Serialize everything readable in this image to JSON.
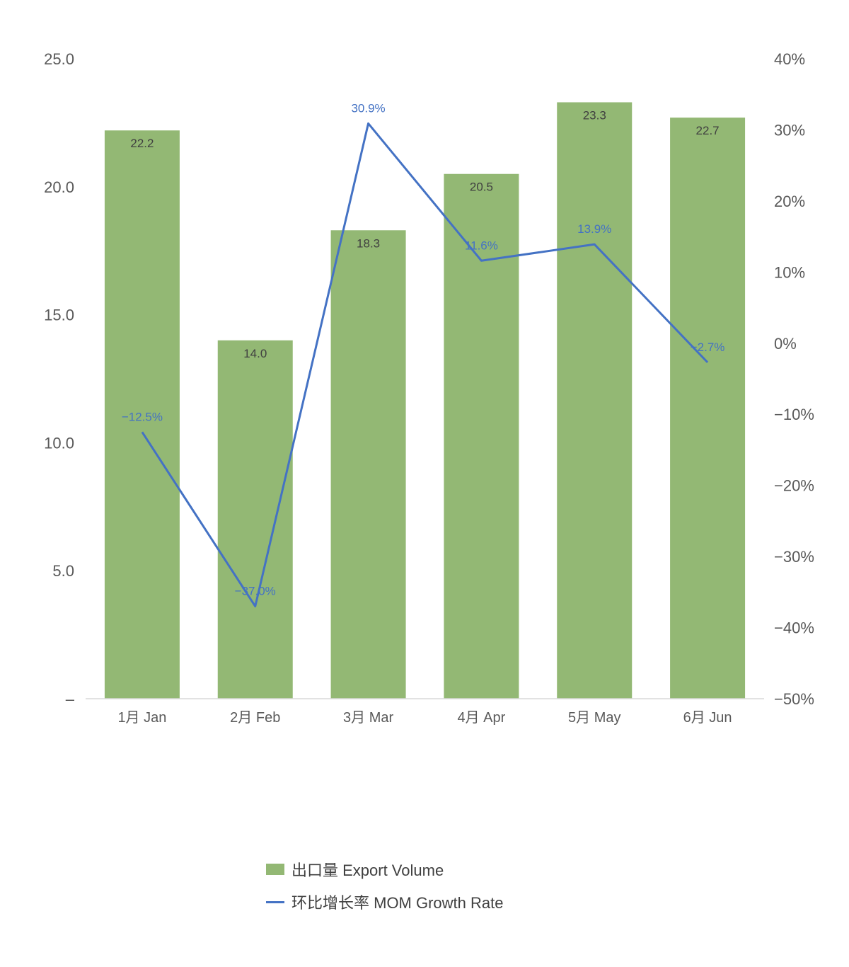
{
  "chart_data": {
    "type": "bar+line",
    "categories": [
      "1月 Jan",
      "2月 Feb",
      "3月 Mar",
      "4月 Apr",
      "5月 May",
      "6月 Jun"
    ],
    "series": [
      {
        "name": "出口量 Export Volume",
        "type": "bar",
        "axis": "left",
        "color": "#93b874",
        "values": [
          22.2,
          14.0,
          18.3,
          20.5,
          23.3,
          22.7
        ],
        "labels": [
          "22.2",
          "14.0",
          "18.3",
          "20.5",
          "23.3",
          "22.7"
        ]
      },
      {
        "name": "环比增长率 MOM Growth Rate",
        "type": "line",
        "axis": "right",
        "color": "#4472c4",
        "values": [
          -12.5,
          -37.0,
          30.9,
          11.6,
          13.9,
          -2.7
        ],
        "labels": [
          "−12.5%",
          "−37.0%",
          "30.9%",
          "11.6%",
          "13.9%",
          "−2.7%"
        ]
      }
    ],
    "y_left": {
      "ylim": [
        0,
        25
      ],
      "ticks": [
        0,
        5,
        10,
        15,
        20,
        25
      ],
      "tick_labels": [
        "–",
        "5.0",
        "10.0",
        "15.0",
        "20.0",
        "25.0"
      ]
    },
    "y_right": {
      "ylim": [
        -50,
        40
      ],
      "ticks": [
        -50,
        -40,
        -30,
        -20,
        -10,
        0,
        10,
        20,
        30,
        40
      ],
      "tick_labels": [
        "−50%",
        "−40%",
        "−30%",
        "−20%",
        "−10%",
        "0%",
        "10%",
        "20%",
        "30%",
        "40%"
      ]
    },
    "grid": false,
    "legend_position": "bottom"
  }
}
